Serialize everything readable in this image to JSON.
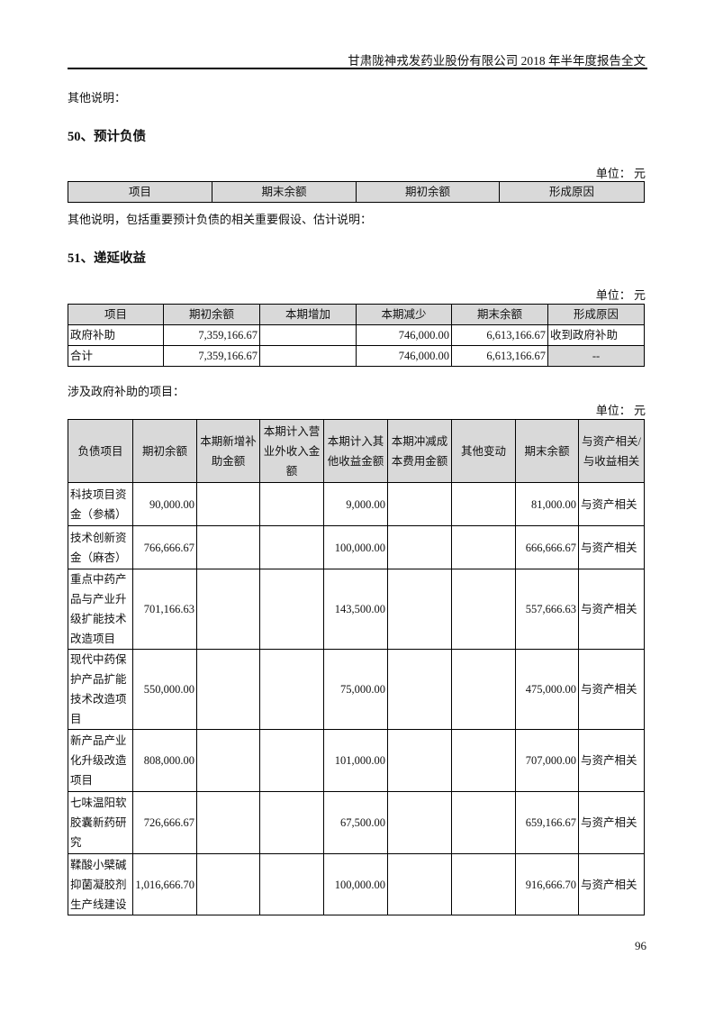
{
  "header": {
    "title": "甘肃陇神戎发药业股份有限公司 2018 年半年度报告全文"
  },
  "other_note_top": "其他说明：",
  "section50": {
    "title": "50、预计负债",
    "unit": "单位：  元",
    "columns": [
      "项目",
      "期末余额",
      "期初余额",
      "形成原因"
    ],
    "note": "其他说明，包括重要预计负债的相关重要假设、估计说明："
  },
  "section51": {
    "title": "51、递延收益",
    "unit": "单位：  元",
    "columns": [
      "项目",
      "期初余额",
      "本期增加",
      "本期减少",
      "期末余额",
      "形成原因"
    ],
    "rows": [
      [
        "政府补助",
        "7,359,166.67",
        "",
        "746,000.00",
        "6,613,166.67",
        "收到政府补助"
      ],
      [
        "合计",
        "7,359,166.67",
        "",
        "746,000.00",
        "6,613,166.67",
        "--"
      ]
    ],
    "note": "涉及政府补助的项目：",
    "unit2": "单位：  元"
  },
  "grants_table": {
    "columns": [
      "负债项目",
      "期初余额",
      "本期新增补助金额",
      "本期计入营业外收入金额",
      "本期计入其他收益金额",
      "本期冲减成本费用金额",
      "其他变动",
      "期末余额",
      "与资产相关/与收益相关"
    ],
    "rows": [
      [
        "科技项目资金（参橘）",
        "90,000.00",
        "",
        "",
        "9,000.00",
        "",
        "",
        "81,000.00",
        "与资产相关"
      ],
      [
        "技术创新资金（麻杏）",
        "766,666.67",
        "",
        "",
        "100,000.00",
        "",
        "",
        "666,666.67",
        "与资产相关"
      ],
      [
        "重点中药产品与产业升级扩能技术改造项目",
        "701,166.63",
        "",
        "",
        "143,500.00",
        "",
        "",
        "557,666.63",
        "与资产相关"
      ],
      [
        "现代中药保护产品扩能技术改造项目",
        "550,000.00",
        "",
        "",
        "75,000.00",
        "",
        "",
        "475,000.00",
        "与资产相关"
      ],
      [
        "新产品产业化升级改造项目",
        "808,000.00",
        "",
        "",
        "101,000.00",
        "",
        "",
        "707,000.00",
        "与资产相关"
      ],
      [
        "七味温阳软胶囊新药研究",
        "726,666.67",
        "",
        "",
        "67,500.00",
        "",
        "",
        "659,166.67",
        "与资产相关"
      ],
      [
        "鞣酸小檗碱抑菌凝胶剂生产线建设",
        "1,016,666.70",
        "",
        "",
        "100,000.00",
        "",
        "",
        "916,666.70",
        "与资产相关"
      ]
    ]
  },
  "page_number": "96"
}
